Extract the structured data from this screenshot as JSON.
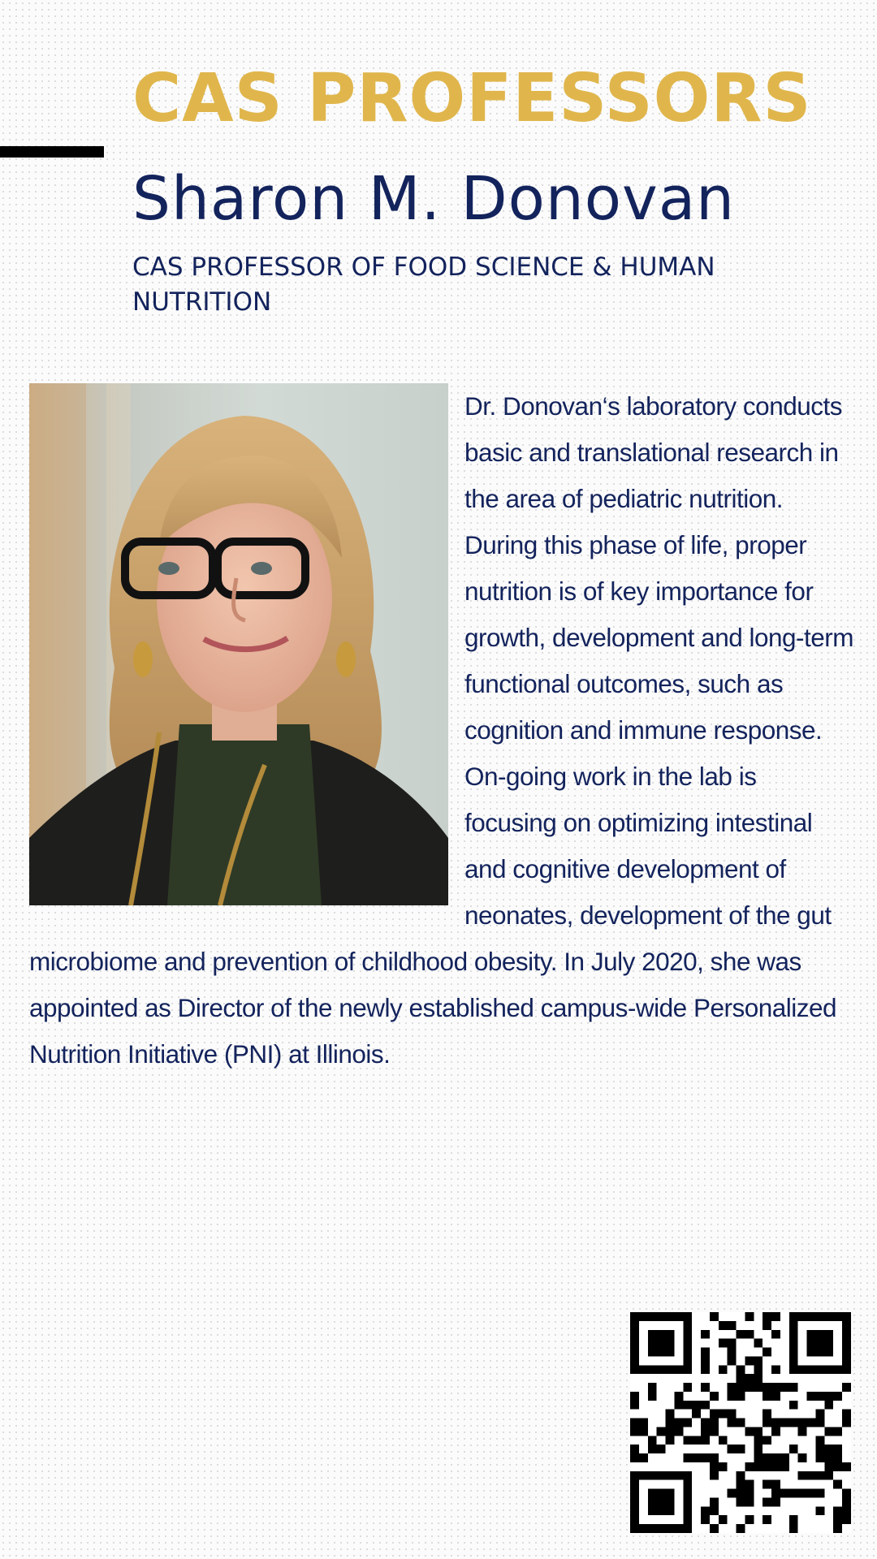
{
  "header": {
    "section_title": "CAS PROFESSORS",
    "name": "Sharon M. Donovan",
    "role": "CAS PROFESSOR OF FOOD SCIENCE & HUMAN NUTRITION"
  },
  "bio": {
    "text": "Dr. Donovan‘s laboratory conducts basic and translational research in the area of pediatric nutrition. During this phase of life, proper nutrition is of key importance for growth, development and long-term functional outcomes, such as cognition and immune response. On-going work in the lab is focusing on optimizing intestinal and cognitive development of neonates, development of the gut microbiome and prevention of childhood obesity. In July 2020, she was appointed as Director of the newly established campus-wide Personalized Nutrition Initiative (PNI) at Illinois."
  },
  "colors": {
    "gold": "#e0b64c",
    "navy": "#13235c",
    "black": "#000000",
    "background": "#fbfbfb"
  },
  "icons": {
    "portrait": "portrait-photo",
    "qr": "qr-code-icon"
  }
}
